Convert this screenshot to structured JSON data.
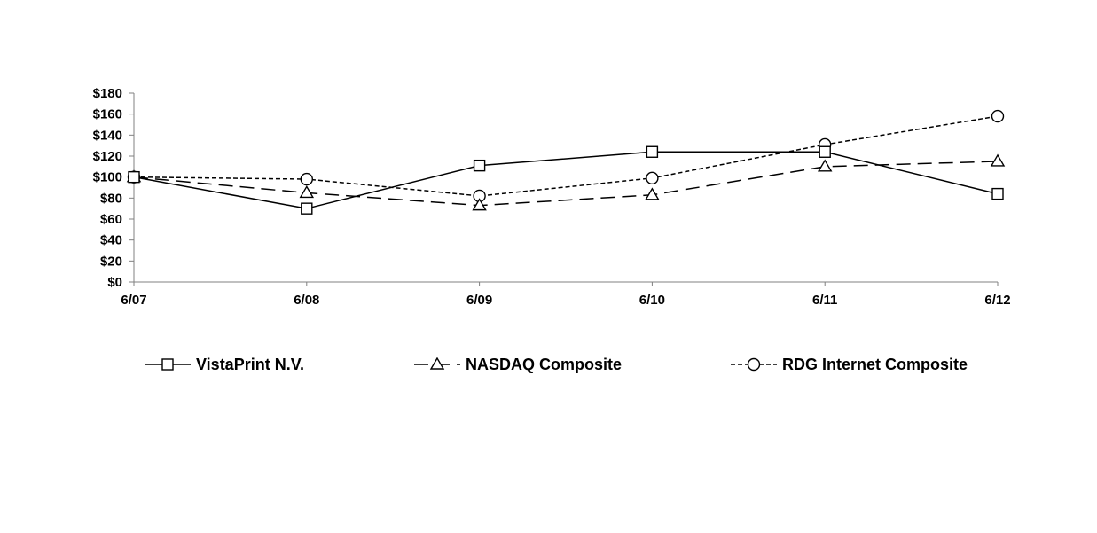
{
  "chart_data": {
    "type": "line",
    "categories": [
      "6/07",
      "6/08",
      "6/09",
      "6/10",
      "6/11",
      "6/12"
    ],
    "ylim": [
      0,
      180
    ],
    "y_ticks": [
      0,
      20,
      40,
      60,
      80,
      100,
      120,
      140,
      160,
      180
    ],
    "y_tick_labels": [
      "$0",
      "$20",
      "$40",
      "$60",
      "$80",
      "$100",
      "$120",
      "$140",
      "$160",
      "$180"
    ],
    "grid": false,
    "legend_position": "bottom",
    "series": [
      {
        "name": "VistaPrint N.V.",
        "marker": "square",
        "dash": "solid",
        "values": [
          100,
          70,
          111,
          124,
          124,
          84
        ]
      },
      {
        "name": "NASDAQ Composite",
        "marker": "triangle",
        "dash": "long-dash",
        "values": [
          100,
          85,
          73,
          83,
          110,
          115
        ]
      },
      {
        "name": "RDG Internet Composite",
        "marker": "circle",
        "dash": "short-dash",
        "values": [
          100,
          98,
          82,
          99,
          131,
          158
        ]
      }
    ]
  }
}
